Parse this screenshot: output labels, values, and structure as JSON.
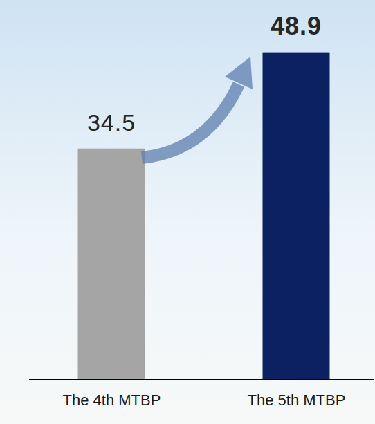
{
  "chart_data": {
    "type": "bar",
    "categories": [
      "The 4th MTBP",
      "The 5th MTBP"
    ],
    "values": [
      34.5,
      48.9
    ],
    "colors": [
      "#a5a5a5",
      "#0b2161"
    ],
    "ylim": [
      0,
      50
    ],
    "data_labels": true,
    "tick_labels": "x"
  }
}
